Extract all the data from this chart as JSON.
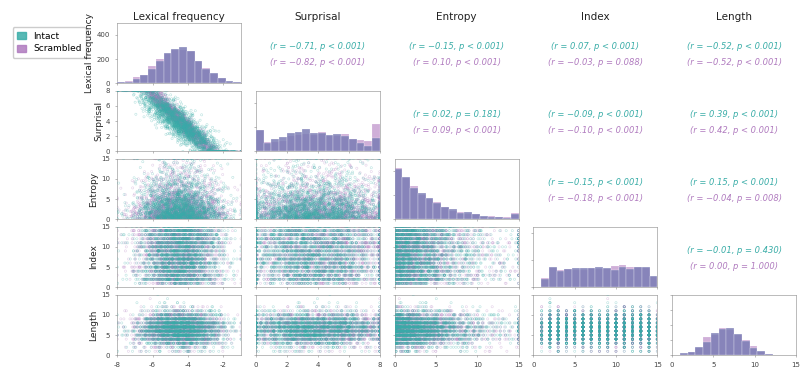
{
  "variables": [
    "Lexical frequency",
    "Surprisal",
    "Entropy",
    "Index",
    "Length"
  ],
  "intact_color": "#3aada8",
  "scrambled_color": "#b07bbf",
  "hist_color_intact": "#7b7db5",
  "hist_color_scrambled": "#b07bbf",
  "background": "#ffffff",
  "correlations": {
    "0_1": {
      "intact": "(r = −0.71, p < 0.001)",
      "scrambled": "(r = −0.82, p < 0.001)"
    },
    "0_2": {
      "intact": "(r = −0.15, p < 0.001)",
      "scrambled": "(r = 0.10, p < 0.001)"
    },
    "0_3": {
      "intact": "(r = 0.07, p < 0.001)",
      "scrambled": "(r = −0.03, p = 0.088)"
    },
    "0_4": {
      "intact": "(r = −0.52, p < 0.001)",
      "scrambled": "(r = −0.52, p < 0.001)"
    },
    "1_2": {
      "intact": "(r = 0.02, p = 0.181)",
      "scrambled": "(r = 0.09, p < 0.001)"
    },
    "1_3": {
      "intact": "(r = −0.09, p < 0.001)",
      "scrambled": "(r = −0.10, p < 0.001)"
    },
    "1_4": {
      "intact": "(r = 0.39, p < 0.001)",
      "scrambled": "(r = 0.42, p < 0.001)"
    },
    "2_3": {
      "intact": "(r = −0.15, p < 0.001)",
      "scrambled": "(r = −0.18, p < 0.001)"
    },
    "2_4": {
      "intact": "(r = 0.15, p < 0.001)",
      "scrambled": "(r = −0.04, p = 0.008)"
    },
    "3_4": {
      "intact": "(r = −0.01, p = 0.430)",
      "scrambled": "(r = 0.00, p = 1.000)"
    }
  },
  "axis_ranges": {
    "0": [
      -8,
      -1
    ],
    "1": [
      0,
      8
    ],
    "2": [
      0,
      15
    ],
    "3": [
      0,
      15
    ],
    "4": [
      0,
      15
    ]
  },
  "hist_ylim": {
    "0": 500,
    "1": 500,
    "2": 500,
    "3": 450,
    "4": 800
  },
  "axis_ticks": {
    "0": [
      -8,
      -6,
      -4,
      -2
    ],
    "1": [
      0,
      2,
      4,
      6,
      8
    ],
    "2": [
      0,
      5,
      10,
      15
    ],
    "3": [
      0,
      5,
      10,
      15
    ],
    "4": [
      0,
      5,
      10,
      15
    ]
  },
  "title_fontsize": 7.5,
  "corr_fontsize": 6.0,
  "label_fontsize": 6.5,
  "tick_fontsize": 5.0,
  "legend_fontsize": 6.5
}
